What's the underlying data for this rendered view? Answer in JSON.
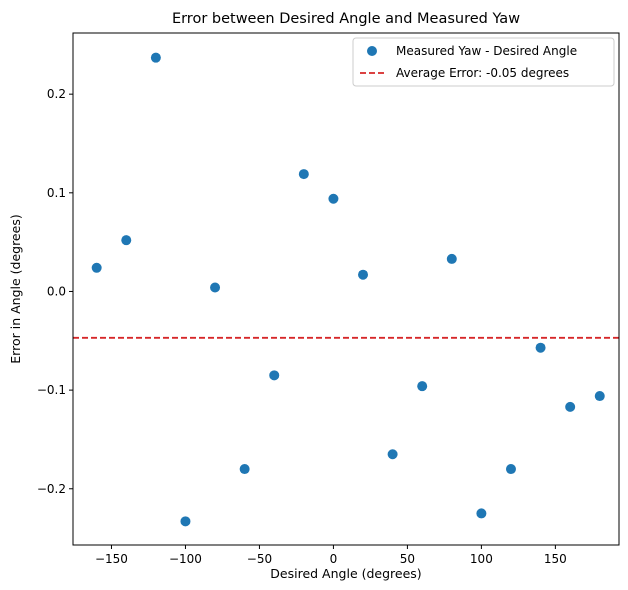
{
  "chart_data": {
    "type": "scatter",
    "title": "Error between Desired Angle and Measured Yaw",
    "xlabel": "Desired Angle (degrees)",
    "ylabel": "Error in Angle (degrees)",
    "xlim": [
      -176,
      193
    ],
    "ylim": [
      -0.257,
      0.262
    ],
    "xticks": [
      -150,
      -100,
      -50,
      0,
      50,
      100,
      150
    ],
    "xtick_labels": [
      "−150",
      "−100",
      "−50",
      "0",
      "50",
      "100",
      "150"
    ],
    "yticks": [
      -0.2,
      -0.1,
      0.0,
      0.1,
      0.2
    ],
    "ytick_labels": [
      "−0.2",
      "−0.1",
      "0.0",
      "0.1",
      "0.2"
    ],
    "grid": false,
    "legend_position": "top-right",
    "series": [
      {
        "name": "Measured Yaw - Desired Angle",
        "color": "#1f77b4",
        "marker": "circle",
        "x": [
          -160,
          -140,
          -120,
          -100,
          -80,
          -60,
          -40,
          -20,
          0,
          20,
          40,
          60,
          80,
          100,
          120,
          140,
          160,
          180
        ],
        "y": [
          0.024,
          0.052,
          0.237,
          -0.233,
          0.004,
          -0.18,
          -0.085,
          0.119,
          0.094,
          0.017,
          -0.165,
          -0.096,
          0.033,
          -0.225,
          -0.18,
          -0.057,
          -0.117,
          -0.106
        ]
      }
    ],
    "hlines": [
      {
        "name": "Average Error: -0.05 degrees",
        "y": -0.047,
        "color": "#d62728",
        "style": "dashed"
      }
    ]
  }
}
